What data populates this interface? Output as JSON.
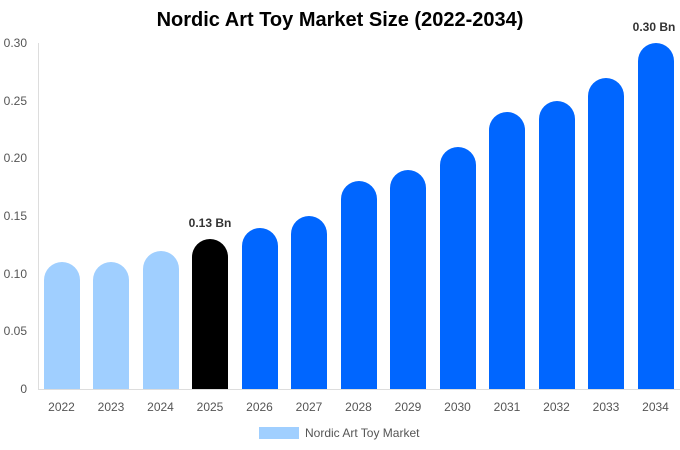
{
  "chart_data": {
    "type": "bar",
    "title": "Nordic Art Toy Market Size (2022-2034)",
    "xlabel": "",
    "ylabel": "",
    "ylim": [
      0,
      0.3
    ],
    "yticks": [
      "0",
      "0.05",
      "0.10",
      "0.15",
      "0.20",
      "0.25",
      "0.30"
    ],
    "categories": [
      "2022",
      "2023",
      "2024",
      "2025",
      "2026",
      "2027",
      "2028",
      "2029",
      "2030",
      "2031",
      "2032",
      "2033",
      "2034"
    ],
    "series": [
      {
        "name": "Nordic Art Toy Market",
        "values": [
          0.11,
          0.11,
          0.12,
          0.13,
          0.14,
          0.15,
          0.18,
          0.19,
          0.21,
          0.24,
          0.25,
          0.27,
          0.3
        ]
      }
    ],
    "bar_colors": [
      "#a0cfff",
      "#a0cfff",
      "#a0cfff",
      "#000000",
      "#0066ff",
      "#0066ff",
      "#0066ff",
      "#0066ff",
      "#0066ff",
      "#0066ff",
      "#0066ff",
      "#0066ff",
      "#0066ff"
    ],
    "annotations": [
      {
        "category": "2025",
        "text": "0.13 Bn"
      },
      {
        "category": "2034",
        "text": "0.30 Bn"
      }
    ],
    "legend": {
      "position": "bottom",
      "entries": [
        {
          "label": "Nordic Art Toy Market",
          "color": "#a0cfff"
        }
      ]
    },
    "grid": false
  }
}
